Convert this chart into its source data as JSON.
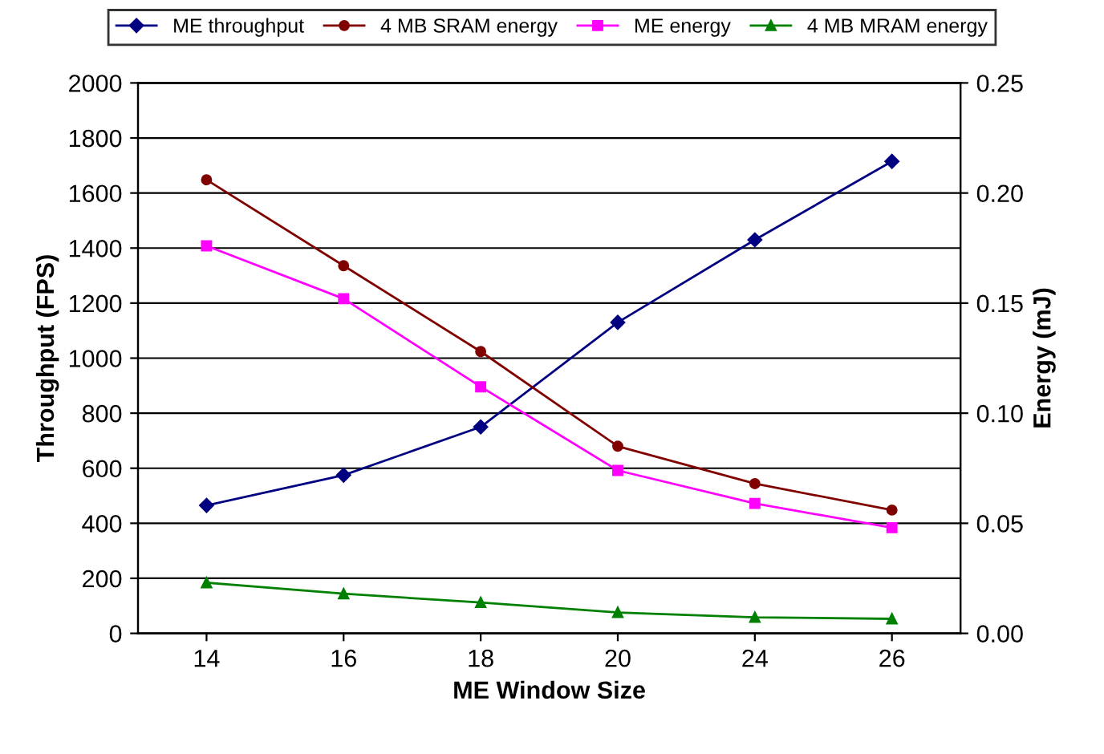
{
  "chart_data": {
    "type": "line",
    "xlabel": "ME Window Size",
    "ylabel": "Throughput (FPS)",
    "y2label": "Energy (mJ)",
    "categories": [
      "14",
      "16",
      "18",
      "20",
      "24",
      "26"
    ],
    "series": [
      {
        "name": "ME throughput",
        "color": "#000080",
        "marker": "diamond",
        "values": [
          465,
          575,
          750,
          1130,
          1430,
          1715
        ]
      },
      {
        "name": "4 MB SRAM energy",
        "color": "#800000",
        "marker": "circle",
        "axis": "y2",
        "values": [
          0.206,
          0.167,
          0.128,
          0.085,
          0.068,
          0.056
        ]
      },
      {
        "name": "ME energy",
        "color": "#ff00ff",
        "marker": "square",
        "axis": "y2",
        "values": [
          0.176,
          0.152,
          0.112,
          0.074,
          0.059,
          0.048
        ]
      },
      {
        "name": "4 MB MRAM energy",
        "color": "#008000",
        "marker": "triangle",
        "axis": "y2",
        "values": [
          0.023,
          0.018,
          0.014,
          0.0095,
          0.0073,
          0.0066
        ]
      }
    ],
    "ylim": [
      0,
      2000
    ],
    "yticks": [
      0,
      200,
      400,
      600,
      800,
      1000,
      1200,
      1400,
      1600,
      1800,
      2000
    ],
    "y2lim": [
      0,
      0.25
    ],
    "y2ticks": [
      {
        "value": 0,
        "label": "0.00"
      },
      {
        "value": 0.05,
        "label": "0.05"
      },
      {
        "value": 0.1,
        "label": "0.10"
      },
      {
        "value": 0.15,
        "label": "0.15"
      },
      {
        "value": 0.2,
        "label": "0.20"
      },
      {
        "value": 0.25,
        "label": "0.25"
      }
    ],
    "grid": "y",
    "legend": "top"
  }
}
